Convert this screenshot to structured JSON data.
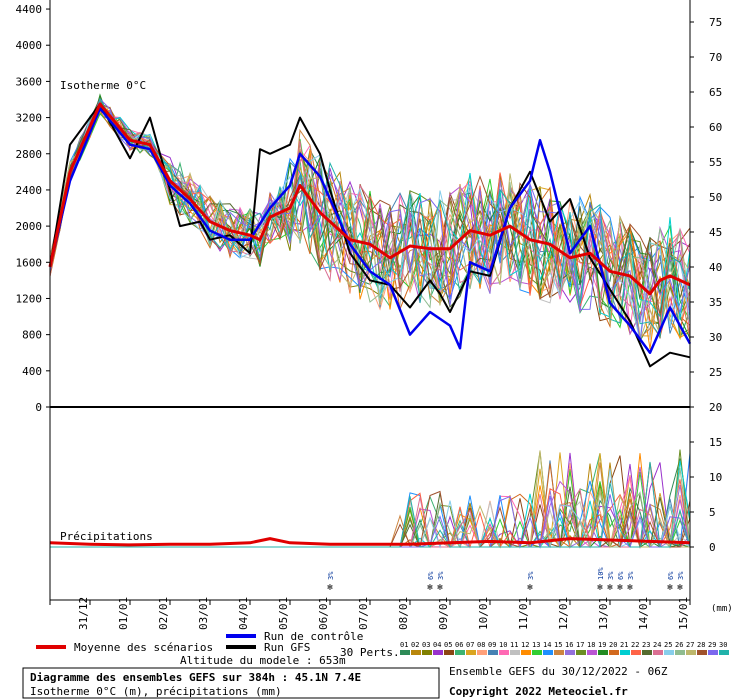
{
  "chart_data": {
    "type": "line",
    "title": "Diagramme des ensembles GEFS sur 384h : 45.1N 7.4E",
    "subtitle": "Isotherme 0°C (m), précipitations (mm)",
    "altitude_label": "Altitude du modele : 653m",
    "run_label": "Ensemble GEFS du 30/12/2022 - 06Z",
    "copyright": "Copyright 2022 Meteociel.fr",
    "upper_panel_label": "Isotherme 0°C",
    "lower_panel_label": "Précipitations",
    "right_unit_label": "(mm)",
    "perts_label": "30 Perts.",
    "x": [
      "31/12",
      "01/01",
      "02/01",
      "03/01",
      "04/01",
      "05/01",
      "06/01",
      "07/01",
      "08/01",
      "09/01",
      "10/01",
      "11/01",
      "12/01",
      "13/01",
      "14/01",
      "15/01"
    ],
    "y_left_ticks": [
      0,
      400,
      800,
      1200,
      1600,
      2000,
      2400,
      2800,
      3200,
      3600,
      4000,
      4400
    ],
    "y_left_range": [
      0,
      4500
    ],
    "y_right_ticks": [
      75,
      70,
      65,
      60,
      55,
      50,
      45,
      40,
      35,
      30,
      25,
      20,
      15,
      10,
      5,
      0
    ],
    "legend": [
      {
        "name": "Moyenne des scénarios",
        "color": "#e00000"
      },
      {
        "name": "Run de contrôle",
        "color": "#0000ee"
      },
      {
        "name": "Run GFS",
        "color": "#000000"
      }
    ],
    "pert_ids": [
      "01",
      "02",
      "03",
      "04",
      "05",
      "06",
      "07",
      "08",
      "09",
      "10",
      "11",
      "12",
      "13",
      "14",
      "15",
      "16",
      "17",
      "18",
      "19",
      "20",
      "21",
      "22",
      "23",
      "24",
      "25",
      "26",
      "27",
      "28",
      "29",
      "30"
    ],
    "pert_colors": [
      "#2e8b57",
      "#b8860b",
      "#808000",
      "#9932cc",
      "#8b4513",
      "#3cb371",
      "#daa520",
      "#ffa07a",
      "#4682b4",
      "#ff69b4",
      "#c0c0c0",
      "#ff8c00",
      "#32cd32",
      "#1e90ff",
      "#cd853f",
      "#9370db",
      "#6b8e23",
      "#ba55d3",
      "#228b22",
      "#d2691e",
      "#00ced1",
      "#ff6347",
      "#556b2f",
      "#db7093",
      "#87ceeb",
      "#8fbc8f",
      "#bdb76b",
      "#a0522d",
      "#7b68ee",
      "#20b2aa"
    ],
    "snow_marks": [
      {
        "x": 7.0,
        "pct": "3%"
      },
      {
        "x": 9.5,
        "pct": "6%"
      },
      {
        "x": 9.75,
        "pct": "3%"
      },
      {
        "x": 12.0,
        "pct": "3%"
      },
      {
        "x": 13.75,
        "pct": "10%"
      },
      {
        "x": 14.0,
        "pct": "3%"
      },
      {
        "x": 14.25,
        "pct": "6%"
      },
      {
        "x": 14.5,
        "pct": "3%"
      },
      {
        "x": 15.5,
        "pct": "6%"
      },
      {
        "x": 15.75,
        "pct": "3%"
      }
    ],
    "mean_iso": [
      [
        0,
        1550
      ],
      [
        0.5,
        2600
      ],
      [
        1.25,
        3350
      ],
      [
        2,
        2950
      ],
      [
        2.5,
        2900
      ],
      [
        3,
        2500
      ],
      [
        3.5,
        2300
      ],
      [
        4,
        2050
      ],
      [
        4.5,
        1950
      ],
      [
        5,
        1900
      ],
      [
        5.25,
        1850
      ],
      [
        5.5,
        2100
      ],
      [
        6,
        2200
      ],
      [
        6.25,
        2450
      ],
      [
        6.75,
        2150
      ],
      [
        7,
        2050
      ],
      [
        7.5,
        1850
      ],
      [
        8,
        1800
      ],
      [
        8.5,
        1650
      ],
      [
        9,
        1780
      ],
      [
        9.5,
        1750
      ],
      [
        10,
        1750
      ],
      [
        10.5,
        1950
      ],
      [
        11,
        1900
      ],
      [
        11.5,
        2000
      ],
      [
        12,
        1850
      ],
      [
        12.5,
        1800
      ],
      [
        13,
        1650
      ],
      [
        13.5,
        1700
      ],
      [
        14,
        1500
      ],
      [
        14.5,
        1450
      ],
      [
        15,
        1250
      ],
      [
        15.25,
        1400
      ],
      [
        15.5,
        1450
      ],
      [
        16,
        1350
      ]
    ],
    "control_iso": [
      [
        0,
        1550
      ],
      [
        0.5,
        2500
      ],
      [
        1.25,
        3300
      ],
      [
        2,
        2900
      ],
      [
        2.5,
        2850
      ],
      [
        3,
        2450
      ],
      [
        3.5,
        2250
      ],
      [
        4,
        1950
      ],
      [
        4.5,
        1850
      ],
      [
        5,
        1850
      ],
      [
        5.5,
        2200
      ],
      [
        6,
        2450
      ],
      [
        6.25,
        2800
      ],
      [
        6.75,
        2550
      ],
      [
        7,
        2300
      ],
      [
        7.5,
        1800
      ],
      [
        8,
        1500
      ],
      [
        8.5,
        1350
      ],
      [
        9,
        800
      ],
      [
        9.5,
        1050
      ],
      [
        10,
        900
      ],
      [
        10.25,
        650
      ],
      [
        10.5,
        1600
      ],
      [
        11,
        1500
      ],
      [
        11.5,
        2200
      ],
      [
        12,
        2500
      ],
      [
        12.25,
        2950
      ],
      [
        12.5,
        2600
      ],
      [
        13,
        1700
      ],
      [
        13.5,
        2000
      ],
      [
        14,
        1150
      ],
      [
        14.5,
        900
      ],
      [
        15,
        600
      ],
      [
        15.5,
        1100
      ],
      [
        16,
        700
      ]
    ],
    "gfs_iso": [
      [
        0,
        1550
      ],
      [
        0.5,
        2900
      ],
      [
        1.25,
        3350
      ],
      [
        2,
        2750
      ],
      [
        2.5,
        3200
      ],
      [
        3,
        2400
      ],
      [
        3.25,
        2000
      ],
      [
        3.75,
        2050
      ],
      [
        4,
        1850
      ],
      [
        4.5,
        1900
      ],
      [
        5,
        1700
      ],
      [
        5.25,
        2850
      ],
      [
        5.5,
        2800
      ],
      [
        6,
        2900
      ],
      [
        6.25,
        3200
      ],
      [
        6.75,
        2800
      ],
      [
        7,
        2400
      ],
      [
        7.5,
        1700
      ],
      [
        8,
        1400
      ],
      [
        8.5,
        1350
      ],
      [
        9,
        1100
      ],
      [
        9.5,
        1400
      ],
      [
        9.75,
        1250
      ],
      [
        10,
        1050
      ],
      [
        10.5,
        1500
      ],
      [
        11,
        1450
      ],
      [
        11.5,
        2200
      ],
      [
        12,
        2600
      ],
      [
        12.5,
        2050
      ],
      [
        13,
        2300
      ],
      [
        13.5,
        1650
      ],
      [
        14,
        1300
      ],
      [
        14.5,
        950
      ],
      [
        15,
        450
      ],
      [
        15.5,
        600
      ],
      [
        16,
        550
      ]
    ],
    "mean_precip": [
      [
        0,
        0.3
      ],
      [
        1,
        0.2
      ],
      [
        2,
        0.15
      ],
      [
        3,
        0.2
      ],
      [
        4,
        0.2
      ],
      [
        5,
        0.3
      ],
      [
        5.5,
        0.6
      ],
      [
        6,
        0.3
      ],
      [
        7,
        0.2
      ],
      [
        8,
        0.2
      ],
      [
        9,
        0.2
      ],
      [
        10,
        0.3
      ],
      [
        11,
        0.4
      ],
      [
        12,
        0.3
      ],
      [
        13,
        0.6
      ],
      [
        14,
        0.5
      ],
      [
        15,
        0.4
      ],
      [
        16,
        0.3
      ]
    ]
  }
}
